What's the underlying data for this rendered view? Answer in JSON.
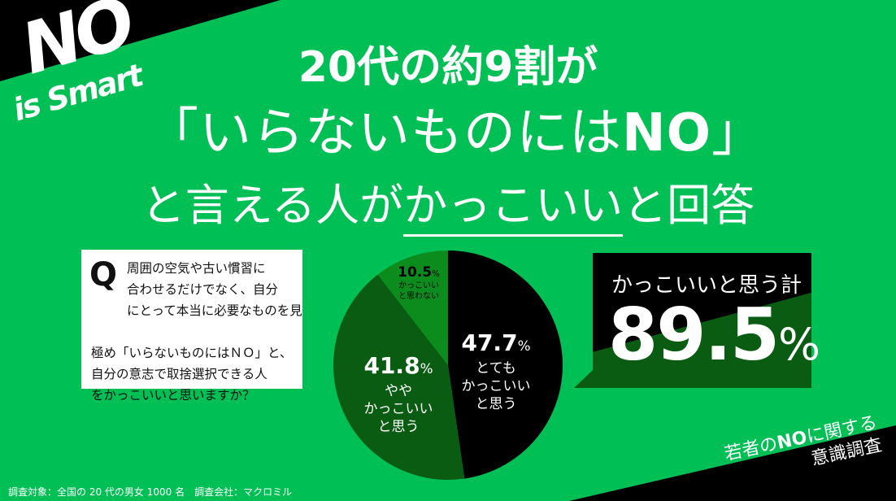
{
  "colors": {
    "background": "#00bf55",
    "black": "#000000",
    "dark_green": "#0a5c12",
    "medium_green": "#0b8c1c",
    "white": "#ffffff"
  },
  "logo": {
    "main": "NO",
    "sub": "is Smart"
  },
  "title": {
    "line1": "20代の約9割が",
    "line2_open": "「いらないものには",
    "line2_no": "NO",
    "line2_close": "」",
    "line3_pre": "と言える人が",
    "line3_emph": "かっこいい",
    "line3_post": "と回答"
  },
  "question": {
    "mark": "Q",
    "text_lines": [
      "周囲の空気や古い慣習に",
      "合わせるだけでなく、自分",
      "にとって本当に必要なものを見"
    ],
    "text_lines2": [
      "極め「いらないものにはＮＯ」と、",
      "自分の意志で取捨選択できる人",
      "をかっこいいと思いますか？"
    ]
  },
  "chart_data": {
    "type": "pie",
    "start": "12 o'clock, clockwise",
    "slices": [
      {
        "value": 47.7,
        "value_label": "47.7",
        "unit": "%",
        "label_lines": [
          "とても",
          "かっこいい",
          "と思う"
        ],
        "color": "#000000"
      },
      {
        "value": 41.8,
        "value_label": "41.8",
        "unit": "%",
        "label_lines": [
          "やや",
          "かっこいい",
          "と思う"
        ],
        "color": "#0a5c12"
      },
      {
        "value": 10.5,
        "value_label": "10.5",
        "unit": "%",
        "label_lines": [
          "かっこいい",
          "と思わない"
        ],
        "color": "#0b8c1c"
      }
    ]
  },
  "total": {
    "label": "かっこいいと思う計",
    "value": "89.5",
    "unit": "%"
  },
  "footer": "調査対象：全国の 20 代の男女 1000 名　調査会社：マクロミル",
  "survey_title": {
    "line1_pre": "若者の",
    "line1_no": "NO",
    "line1_post": "に関する",
    "line2": "意識調査"
  }
}
